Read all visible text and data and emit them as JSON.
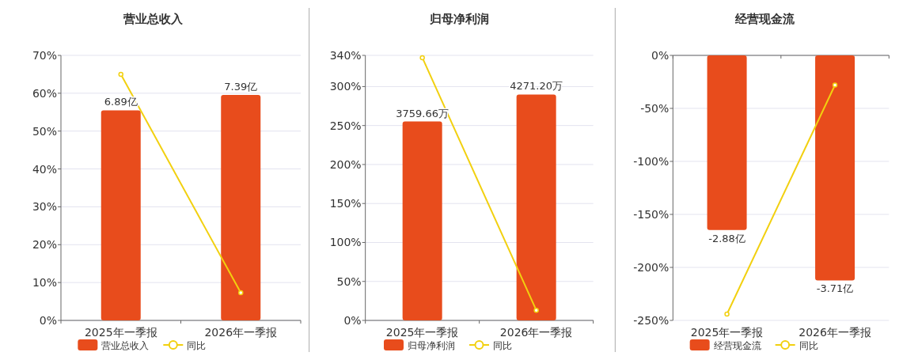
{
  "chart_data": [
    {
      "type": "bar",
      "title": "营业总收入",
      "categories": [
        "2025年一季报",
        "2026年一季报"
      ],
      "ylim": [
        0,
        70
      ],
      "yticks": [
        {
          "value": 0,
          "label": "0%"
        },
        {
          "value": 10,
          "label": "10%"
        },
        {
          "value": 20,
          "label": "20%"
        },
        {
          "value": 30,
          "label": "30%"
        },
        {
          "value": 40,
          "label": "40%"
        },
        {
          "value": 50,
          "label": "50%"
        },
        {
          "value": 60,
          "label": "60%"
        },
        {
          "value": 70,
          "label": "70%"
        }
      ],
      "y2lim": [
        0,
        8.69
      ],
      "grid": "y",
      "legend": "bottom",
      "marker": "circle",
      "series": [
        {
          "name": "营业总收入",
          "type": "bar",
          "axis": "y2",
          "color": "#e84c1c",
          "values": [
            6.89,
            7.39
          ],
          "value_labels": [
            "6.89亿",
            "7.39亿"
          ]
        },
        {
          "name": "同比",
          "type": "line",
          "color": "#f2d00f",
          "values": [
            65,
            7.3
          ]
        }
      ]
    },
    {
      "type": "bar",
      "title": "归母净利润",
      "categories": [
        "2025年一季报",
        "2026年一季报"
      ],
      "ylim": [
        0,
        340
      ],
      "yticks": [
        {
          "value": 0,
          "label": "0%"
        },
        {
          "value": 50,
          "label": "50%"
        },
        {
          "value": 100,
          "label": "100%"
        },
        {
          "value": 150,
          "label": "150%"
        },
        {
          "value": 200,
          "label": "200%"
        },
        {
          "value": 250,
          "label": "250%"
        },
        {
          "value": 300,
          "label": "300%"
        },
        {
          "value": 340,
          "label": "340%"
        }
      ],
      "y2lim": [
        0,
        5010
      ],
      "grid": "y",
      "legend": "bottom",
      "marker": "circle",
      "series": [
        {
          "name": "归母净利润",
          "type": "bar",
          "axis": "y2",
          "color": "#e84c1c",
          "values": [
            3759.66,
            4271.2
          ],
          "value_labels": [
            "3759.66万",
            "4271.20万"
          ]
        },
        {
          "name": "同比",
          "type": "line",
          "color": "#f2d00f",
          "values": [
            337,
            13
          ]
        }
      ]
    },
    {
      "type": "bar",
      "title": "经营现金流",
      "categories": [
        "2025年一季报",
        "2026年一季报"
      ],
      "ylim": [
        -250,
        0
      ],
      "yticks": [
        {
          "value": -250,
          "label": "-250%"
        },
        {
          "value": -200,
          "label": "-200%"
        },
        {
          "value": -150,
          "label": "-150%"
        },
        {
          "value": -100,
          "label": "-100%"
        },
        {
          "value": -50,
          "label": "-50%"
        },
        {
          "value": 0,
          "label": "0%"
        }
      ],
      "y2lim": [
        -4.37,
        0
      ],
      "grid": "y",
      "legend": "bottom",
      "marker": "circle",
      "series": [
        {
          "name": "经营现金流",
          "type": "bar",
          "axis": "y2",
          "color": "#e84c1c",
          "values": [
            -2.88,
            -3.71
          ],
          "value_labels": [
            "-2.88亿",
            "-3.71亿"
          ]
        },
        {
          "name": "同比",
          "type": "line",
          "color": "#f2d00f",
          "values": [
            -244,
            -28
          ]
        }
      ]
    }
  ]
}
